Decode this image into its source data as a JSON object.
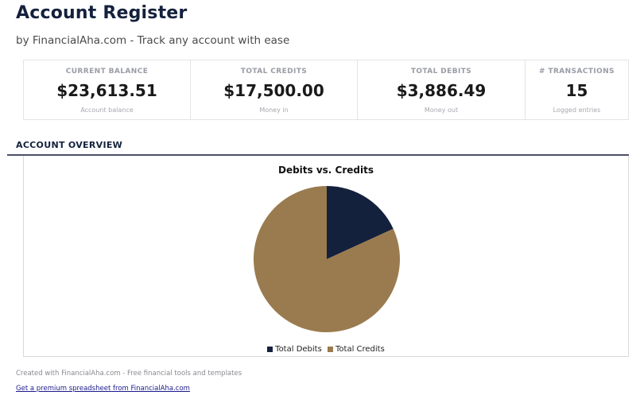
{
  "header": {
    "title": "Account Register",
    "subtitle": "by FinancialAha.com - Track any account with ease"
  },
  "stats": [
    {
      "label": "CURRENT BALANCE",
      "value": "$23,613.51",
      "sub": "Account balance"
    },
    {
      "label": "TOTAL CREDITS",
      "value": "$17,500.00",
      "sub": "Money in"
    },
    {
      "label": "TOTAL DEBITS",
      "value": "$3,886.49",
      "sub": "Money out"
    },
    {
      "label": "# TRANSACTIONS",
      "value": "15",
      "sub": "Logged entries"
    }
  ],
  "overview": {
    "section_title": "ACCOUNT OVERVIEW"
  },
  "chart_data": {
    "type": "pie",
    "title": "Debits vs. Credits",
    "categories": [
      "Total Debits",
      "Total Credits"
    ],
    "values": [
      3886.49,
      17500.0
    ],
    "colors": [
      "#14213d",
      "#9a7b4f"
    ],
    "legend_position": "bottom"
  },
  "footer": {
    "credit": "Created with FinancialAha.com - Free financial tools and templates",
    "link": "Get a premium spreadsheet from FinancialAha.com"
  }
}
